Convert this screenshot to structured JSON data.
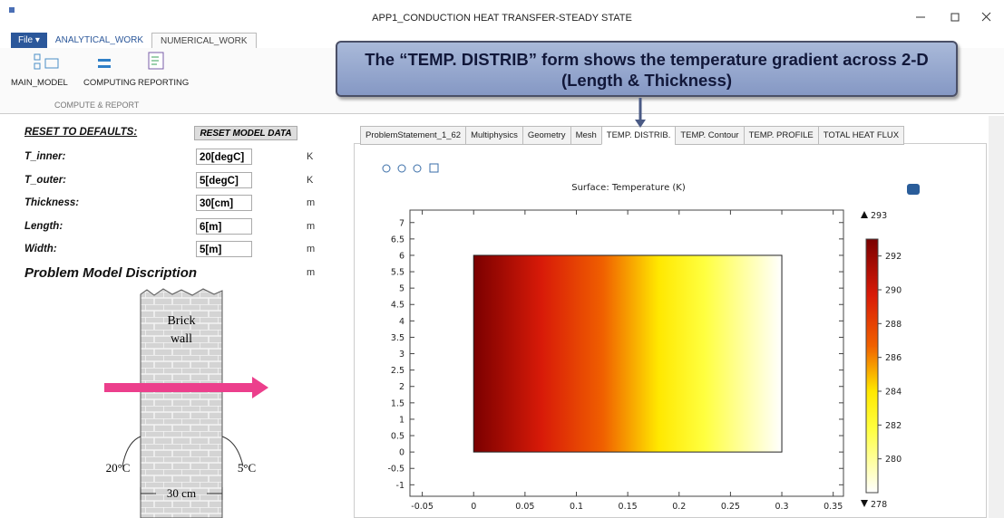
{
  "window": {
    "title": "APP1_CONDUCTION HEAT TRANSFER-STEADY STATE"
  },
  "ribbon": {
    "tabs": [
      "File ▾",
      "ANALYTICAL_WORK",
      "NUMERICAL_WORK"
    ],
    "buttons": [
      "MAIN_MODEL",
      "COMPUTING",
      "REPORTING"
    ],
    "group": "COMPUTE & REPORT"
  },
  "callout": "The “TEMP. DISTRIB” form shows the temperature gradient across 2-D (Length & Thickness)",
  "form": {
    "reset_label": "RESET TO DEFAULTS:",
    "reset_button": "RESET MODEL DATA",
    "fields": [
      {
        "label": "T_inner:",
        "value": "20[degC]",
        "unit": "K"
      },
      {
        "label": "T_outer:",
        "value": "5[degC]",
        "unit": "K"
      },
      {
        "label": "Thickness:",
        "value": "30[cm]",
        "unit": "m"
      },
      {
        "label": "Length:",
        "value": "6[m]",
        "unit": "m"
      },
      {
        "label": "Width:",
        "value": "5[m]",
        "unit": "m"
      }
    ],
    "section": "Problem Model Discription",
    "section_unit": "m"
  },
  "figure": {
    "wall_label_1": "Brick",
    "wall_label_2": "wall",
    "left_temp": "20°C",
    "right_temp": "5°C",
    "thickness": "30 cm"
  },
  "tabs": [
    "ProblemStatement_1_62",
    "Multiphysics",
    "Geometry",
    "Mesh",
    "TEMP. DISTRIB.",
    "TEMP. Contour",
    "TEMP. PROFILE",
    "TOTAL HEAT FLUX"
  ],
  "active_tab": 4,
  "plot": {
    "title": "Surface: Temperature (K)",
    "xlim": [
      -0.062,
      0.36
    ],
    "ylim": [
      -1.35,
      7.38
    ],
    "xticks": [
      -0.05,
      0,
      0.05,
      0.1,
      0.15,
      0.2,
      0.25,
      0.3,
      0.35
    ],
    "yticks": [
      -1,
      -0.5,
      0,
      0.5,
      1,
      1.5,
      2,
      2.5,
      3,
      3.5,
      4,
      4.5,
      5,
      5.5,
      6,
      6.5,
      7
    ],
    "domain": {
      "x": [
        0,
        0.3
      ],
      "y": [
        0,
        6
      ]
    },
    "colorbar": {
      "range": [
        278,
        293
      ],
      "ticks": [
        280,
        282,
        284,
        286,
        288,
        290,
        292
      ]
    }
  }
}
